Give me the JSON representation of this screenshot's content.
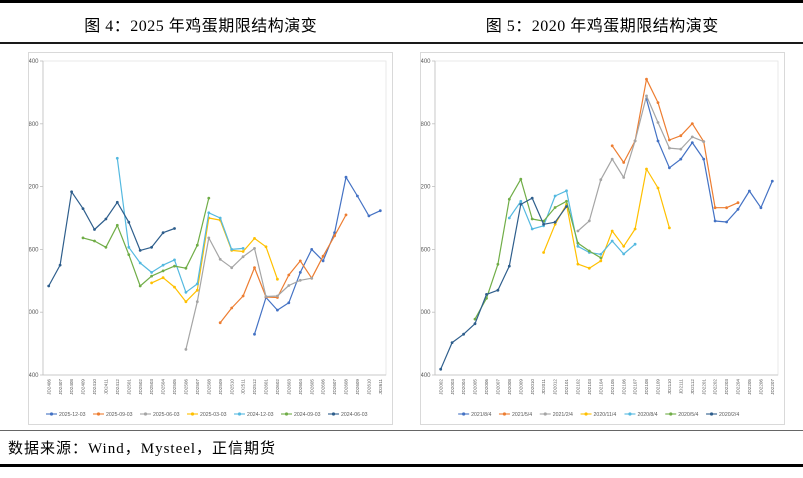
{
  "figures": [
    {
      "title": "图 4：2025 年鸡蛋期限结构演变"
    },
    {
      "title": "图 5：2020 年鸡蛋期限结构演变"
    }
  ],
  "footer": {
    "source_text": "数据来源：Wind，Mysteel，正信期货"
  },
  "chart_data": [
    {
      "type": "line",
      "title": "图 4：2025 年鸡蛋期限结构演变",
      "xlabel": "",
      "ylabel": "",
      "ylim": [
        2400,
        5400
      ],
      "yticks": [
        2400,
        3000,
        3600,
        4200,
        4800,
        5400
      ],
      "grid": false,
      "legend_position": "bottom",
      "categories": [
        "JD2406",
        "JD2407",
        "JD2408",
        "JD2409",
        "JD2410",
        "JD2411",
        "JD2412",
        "JD2501",
        "JD2502",
        "JD2503",
        "JD2504",
        "JD2505",
        "JD2506",
        "JD2507",
        "JD2508",
        "JD2509",
        "JD2510",
        "JD2511",
        "JD2512",
        "JD2601",
        "JD2602",
        "JD2603",
        "JD2604",
        "JD2605",
        "JD2606",
        "JD2607",
        "JD2608",
        "JD2609",
        "JD2610",
        "JD2611"
      ],
      "series": [
        {
          "name": "2025-12-03",
          "color": "#4472c4",
          "start": 18,
          "values": [
            2790,
            3140,
            3020,
            3090,
            3380,
            3600,
            3490,
            3760,
            4290,
            4110,
            3920,
            3970
          ]
        },
        {
          "name": "2025-09-03",
          "color": "#ed7d31",
          "start": 15,
          "values": [
            2900,
            3040,
            3155,
            3425,
            3145,
            3140,
            3355,
            3490,
            3325,
            3535,
            3730,
            3930
          ]
        },
        {
          "name": "2025-06-03",
          "color": "#a5a5a5",
          "start": 12,
          "values": [
            2645,
            3100,
            3710,
            3505,
            3425,
            3530,
            3610,
            3150,
            3155,
            3255,
            3305,
            3325
          ]
        },
        {
          "name": "2025-03-03",
          "color": "#ffc000",
          "start": 9,
          "values": [
            3280,
            3330,
            3240,
            3100,
            3210,
            3900,
            3880,
            3590,
            3580,
            3705,
            3625,
            3315
          ]
        },
        {
          "name": "2024-12-03",
          "color": "#54b9e0",
          "start": 6,
          "values": [
            4470,
            3620,
            3470,
            3380,
            3450,
            3500,
            3190,
            3270,
            3950,
            3900,
            3600,
            3610
          ]
        },
        {
          "name": "2024-09-03",
          "color": "#70ad47",
          "start": 3,
          "values": [
            3710,
            3680,
            3620,
            3830,
            3550,
            3250,
            3345,
            3395,
            3440,
            3420,
            3640,
            4090
          ]
        },
        {
          "name": "2024-06-03",
          "color": "#2e5e8c",
          "start": 0,
          "values": [
            3250,
            3450,
            4150,
            3990,
            3790,
            3890,
            4050,
            3860,
            3590,
            3620,
            3760,
            3800
          ]
        }
      ]
    },
    {
      "type": "line",
      "title": "图 5：2020 年鸡蛋期限结构演变",
      "xlabel": "",
      "ylabel": "",
      "ylim": [
        2400,
        5400
      ],
      "yticks": [
        2400,
        3000,
        3600,
        4200,
        4800,
        5400
      ],
      "grid": false,
      "legend_position": "bottom",
      "categories": [
        "JD2002",
        "JD2003",
        "JD2004",
        "JD2005",
        "JD2006",
        "JD2007",
        "JD2008",
        "JD2009",
        "JD2010",
        "JD2011",
        "JD2012",
        "JD2101",
        "JD2102",
        "JD2103",
        "JD2104",
        "JD2105",
        "JD2106",
        "JD2107",
        "JD2108",
        "JD2109",
        "JD2110",
        "JD2111",
        "JD2112",
        "JD2201",
        "JD2202",
        "JD2203",
        "JD2204",
        "JD2205",
        "JD2206",
        "JD2207"
      ],
      "series": [
        {
          "name": "2021/8/4",
          "color": "#4472c4",
          "start": 18,
          "values": [
            5035,
            4636,
            4380,
            4463,
            4620,
            4463,
            3871,
            3862,
            3983,
            4158,
            3998,
            4253
          ]
        },
        {
          "name": "2021/5/4",
          "color": "#ed7d31",
          "start": 15,
          "values": [
            4590,
            4430,
            4637,
            5226,
            5003,
            4645,
            4686,
            4802,
            4630,
            3998,
            3998,
            4046
          ]
        },
        {
          "name": "2021/2/4",
          "color": "#a5a5a5",
          "start": 12,
          "values": [
            3776,
            3872,
            4266,
            4463,
            4287,
            4637,
            5067,
            4812,
            4568,
            4558,
            4675,
            4630
          ]
        },
        {
          "name": "2020/11/4",
          "color": "#ffc000",
          "start": 9,
          "values": [
            3570,
            3840,
            4030,
            3460,
            3420,
            3490,
            3776,
            3630,
            3795,
            4368,
            4187,
            3805
          ]
        },
        {
          "name": "2020/8/4",
          "color": "#54b9e0",
          "start": 6,
          "values": [
            3900,
            4060,
            3795,
            3825,
            4110,
            4160,
            3630,
            3570,
            3553,
            3680,
            3556,
            3650
          ]
        },
        {
          "name": "2020/5/4",
          "color": "#70ad47",
          "start": 3,
          "values": [
            2934,
            3133,
            3458,
            4080,
            4271,
            3890,
            3870,
            4000,
            4060,
            3660,
            3585,
            3520
          ]
        },
        {
          "name": "2020/2/4",
          "color": "#2e5e8c",
          "start": 0,
          "values": [
            2455,
            2710,
            2790,
            2890,
            3170,
            3210,
            3440,
            4030,
            4090,
            3840,
            3860,
            4010
          ]
        }
      ]
    }
  ]
}
